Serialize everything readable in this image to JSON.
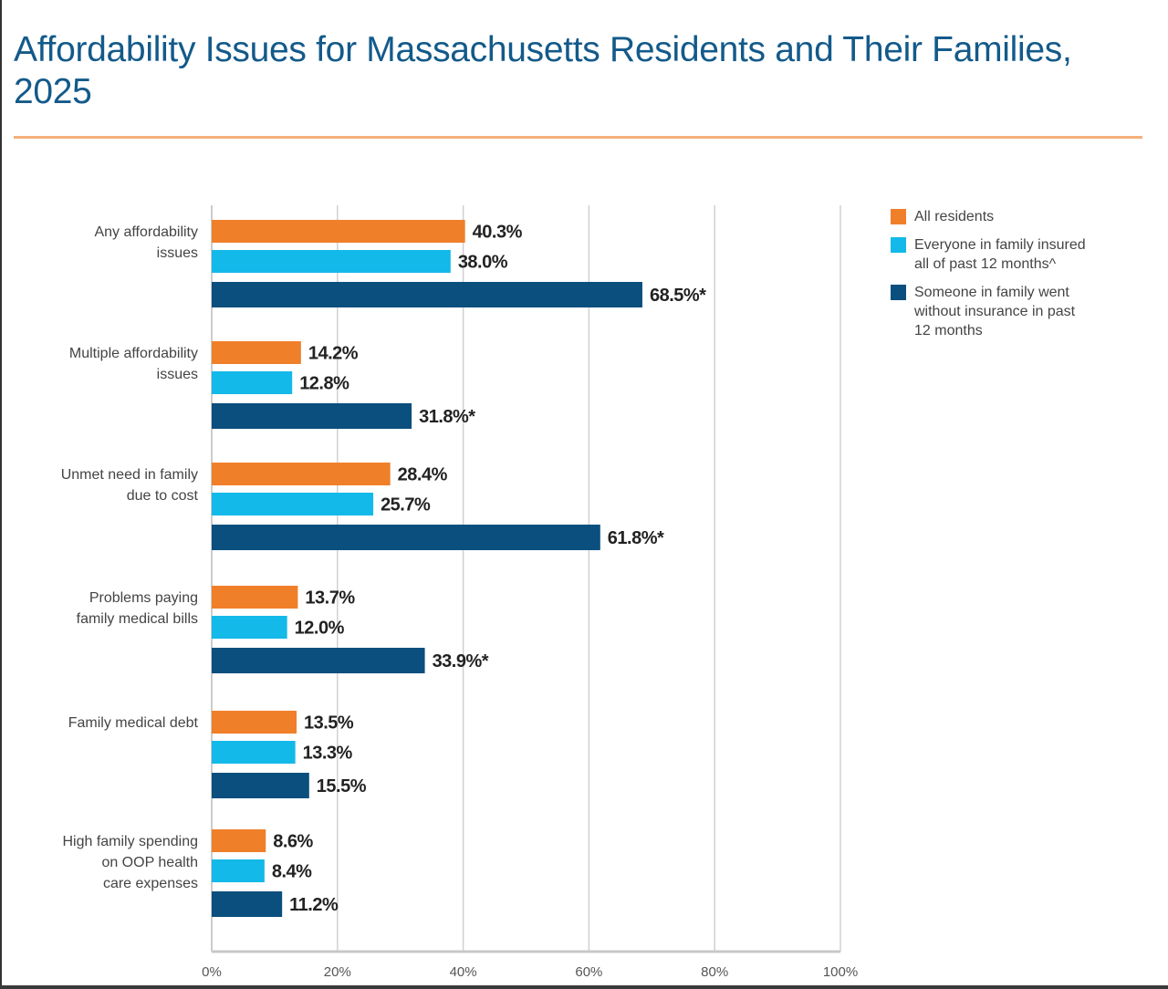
{
  "chart_data": {
    "type": "bar",
    "orientation": "horizontal",
    "title": "Affordability Issues for Massachusetts Residents and Their Families, 2025",
    "categories": [
      [
        "Any affordability",
        "issues"
      ],
      [
        "Multiple affordability",
        "issues"
      ],
      [
        "Unmet need in family",
        "due to cost"
      ],
      [
        "Problems paying",
        "family medical bills"
      ],
      [
        "Family medical debt"
      ],
      [
        "High family spending",
        "on OOP health",
        "care expenses"
      ]
    ],
    "series": [
      {
        "name": "All residents",
        "color": "#f07f2a",
        "values": [
          40.3,
          14.2,
          28.4,
          13.7,
          13.5,
          8.6
        ],
        "labels": [
          "40.3%",
          "14.2%",
          "28.4%",
          "13.7%",
          "13.5%",
          "8.6%"
        ]
      },
      {
        "name": "Everyone in family insured all of past 12 months^",
        "legend_lines": [
          "Everyone in family insured",
          "all of past 12 months^"
        ],
        "color": "#13b9e8",
        "values": [
          38.0,
          12.8,
          25.7,
          12.0,
          13.3,
          8.4
        ],
        "labels": [
          "38.0%",
          "12.8%",
          "25.7%",
          "12.0%",
          "13.3%",
          "8.4%"
        ]
      },
      {
        "name": "Someone in family went without insurance in past 12 months",
        "legend_lines": [
          "Someone in family went",
          "without insurance in past",
          "12 months"
        ],
        "color": "#0a4f7e",
        "values": [
          68.5,
          31.8,
          61.8,
          33.9,
          15.5,
          11.2
        ],
        "labels": [
          "68.5%*",
          "31.8%*",
          "61.8%*",
          "33.9%*",
          "15.5%",
          "11.2%"
        ]
      }
    ],
    "xlim": [
      0,
      100
    ],
    "xticks": [
      "0%",
      "20%",
      "40%",
      "60%",
      "80%",
      "100%"
    ],
    "grid": true,
    "legend_position": "top-right",
    "colors": {
      "title": "#135a8a",
      "rule": "#f5b07a",
      "grid": "#d0d0d0"
    }
  }
}
